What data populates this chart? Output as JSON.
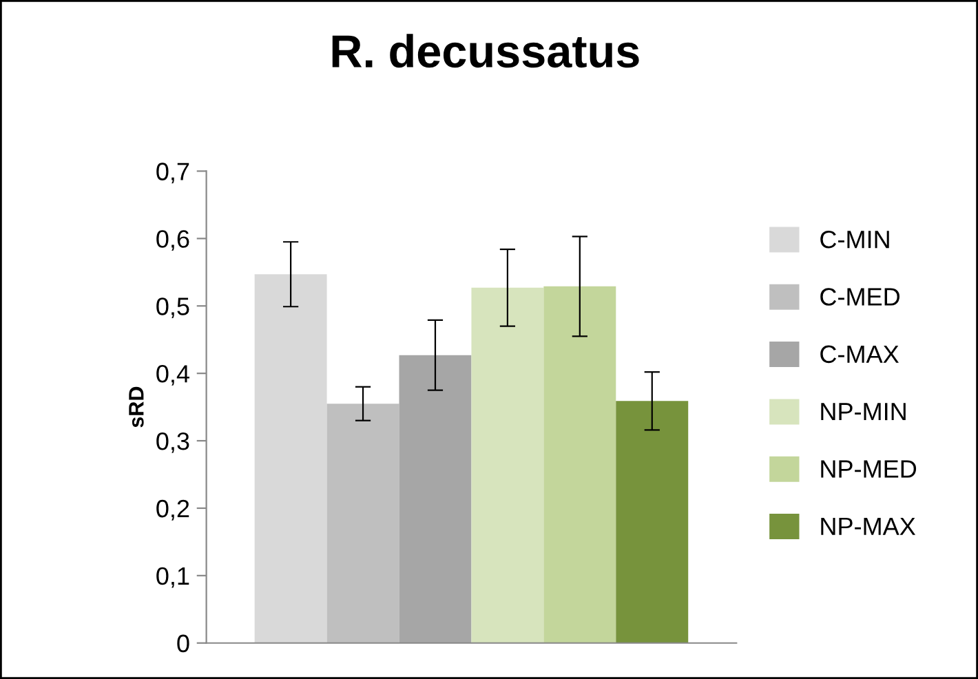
{
  "chart_data": {
    "type": "bar",
    "title": "R. decussatus",
    "ylabel": "sRD",
    "categories": [
      null
    ],
    "series": [
      {
        "name": "C-MIN",
        "color": "#d9d9d9",
        "values": [
          0.547
        ],
        "errors": [
          0.048
        ]
      },
      {
        "name": "C-MED",
        "color": "#bfbfbf",
        "values": [
          0.355
        ],
        "errors": [
          0.025
        ]
      },
      {
        "name": "C-MAX",
        "color": "#a6a6a6",
        "values": [
          0.427
        ],
        "errors": [
          0.052
        ]
      },
      {
        "name": "NP-MIN",
        "color": "#d7e4bd",
        "values": [
          0.527
        ],
        "errors": [
          0.057
        ]
      },
      {
        "name": "NP-MED",
        "color": "#c3d69b",
        "values": [
          0.529
        ],
        "errors": [
          0.074
        ]
      },
      {
        "name": "NP-MAX",
        "color": "#77933c",
        "values": [
          0.359
        ],
        "errors": [
          0.043
        ]
      }
    ],
    "ylim": [
      0,
      0.7
    ],
    "yticks": [
      0,
      {
        "value": 0.1,
        "label": "0,1"
      },
      {
        "value": 0.2,
        "label": "0,2"
      },
      {
        "value": 0.3,
        "label": "0,3"
      },
      {
        "value": 0.4,
        "label": "0,4"
      },
      {
        "value": 0.5,
        "label": "0,5"
      },
      {
        "value": 0.6,
        "label": "0,6"
      },
      {
        "value": 0.7,
        "label": "0,7"
      }
    ],
    "grid": false,
    "legend": "right"
  }
}
